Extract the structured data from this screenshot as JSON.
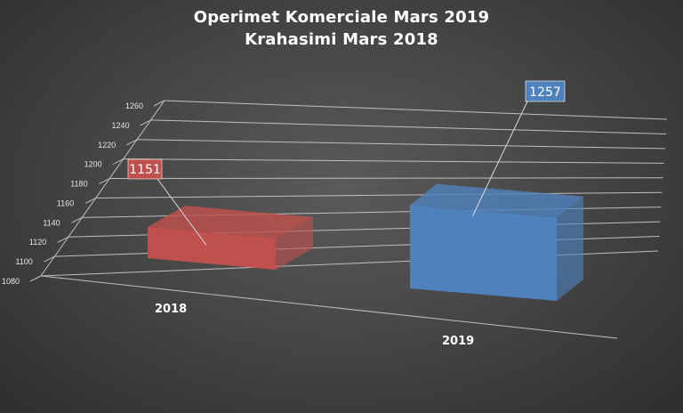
{
  "chart_data": {
    "type": "bar",
    "title": "Operimet Komerciale Mars 2019",
    "subtitle": "Krahasimi Mars 2018",
    "categories": [
      "2018",
      "2019"
    ],
    "values": [
      1151,
      1257
    ],
    "data_labels": [
      "1151",
      "1257"
    ],
    "ylim": [
      1080,
      1260
    ],
    "yticks": [
      1080,
      1100,
      1120,
      1140,
      1160,
      1180,
      1200,
      1220,
      1240,
      1260
    ],
    "grid": true,
    "legend": "none",
    "colors": [
      "#c0504d",
      "#4f81bd"
    ]
  }
}
